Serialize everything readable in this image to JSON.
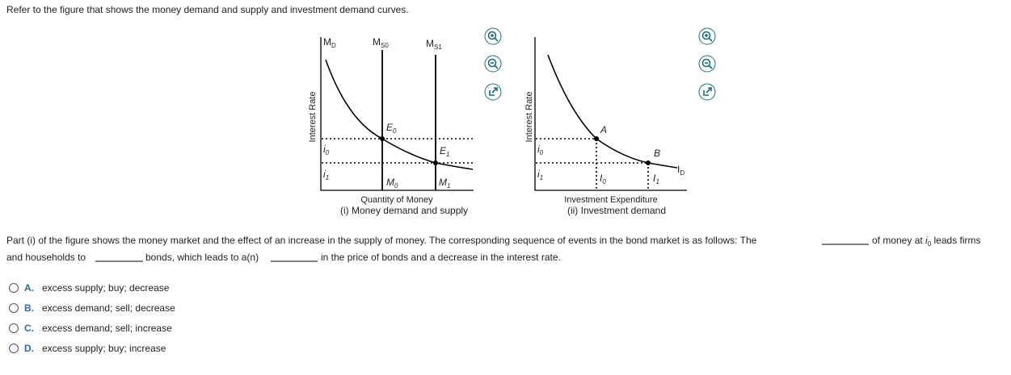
{
  "prompt": "Refer to the figure that shows the money demand and supply and investment demand curves.",
  "figure1": {
    "y_axis_label": "Interest Rate",
    "x_axis_label": "Quantity of Money",
    "caption": "(i) Money demand and supply",
    "curve_labels": [
      {
        "main": "M",
        "sub": "D"
      },
      {
        "main": "M",
        "sub": "S0"
      },
      {
        "main": "M",
        "sub": "S1"
      }
    ],
    "points": [
      {
        "main": "E",
        "sub": "0"
      },
      {
        "main": "E",
        "sub": "1"
      }
    ],
    "rates": [
      {
        "main": "i",
        "sub": "0"
      },
      {
        "main": "i",
        "sub": "1"
      }
    ],
    "quantities": [
      {
        "main": "M",
        "sub": "0"
      },
      {
        "main": "M",
        "sub": "1"
      }
    ]
  },
  "figure2": {
    "y_axis_label": "Interest Rate",
    "x_axis_label": "Investment Expenditure",
    "caption": "(ii) Investment demand",
    "curve_label": {
      "main": "I",
      "sub": "D"
    },
    "points": [
      "A",
      "B"
    ],
    "rates": [
      {
        "main": "i",
        "sub": "0"
      },
      {
        "main": "i",
        "sub": "1"
      }
    ],
    "quantities": [
      {
        "main": "I",
        "sub": "0"
      },
      {
        "main": "I",
        "sub": "1"
      }
    ]
  },
  "question": {
    "line1_start": "Part (i) of the figure shows the money market and the effect of an increase in the supply of money. The corresponding sequence of events in the bond market is as follows: The",
    "line1_mid": "of money at",
    "rate": {
      "main": "i",
      "sub": "0"
    },
    "line1_end": "leads firms",
    "line2_start": "and households to",
    "line2_mid": "bonds, which leads to a(n)",
    "line2_end": "in the price of bonds and a decrease in the interest rate."
  },
  "options": [
    {
      "letter": "A.",
      "text": "excess supply; buy; decrease"
    },
    {
      "letter": "B.",
      "text": "excess demand; sell; decrease"
    },
    {
      "letter": "C.",
      "text": "excess demand; sell; increase"
    },
    {
      "letter": "D.",
      "text": "excess supply; buy; increase"
    }
  ]
}
